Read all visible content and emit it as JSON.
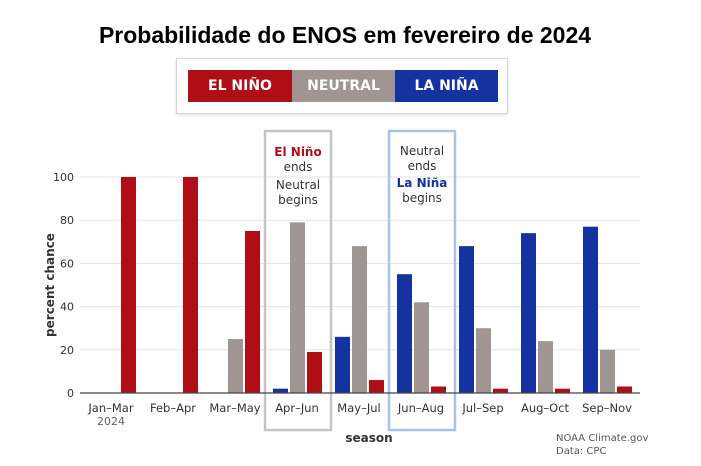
{
  "title": "Probabilidade do ENOS em fevereiro de 2024",
  "legend": [
    {
      "label": "EL NIÑO",
      "color": "#b00e16"
    },
    {
      "label": "NEUTRAL",
      "color": "#a19593"
    },
    {
      "label": "LA NIÑA",
      "color": "#1432a0"
    }
  ],
  "annotations": {
    "box1": {
      "line1": "El Niño",
      "line2": "ends",
      "line3": "Neutral",
      "line4": "begins"
    },
    "box2": {
      "line1": "Neutral",
      "line2": "ends",
      "line3": "La Niña",
      "line4": "begins"
    }
  },
  "source": {
    "line1": "NOAA Climate.gov",
    "line2": "Data: CPC"
  },
  "chart_data": {
    "type": "bar",
    "title": "Probabilidade do ENOS em fevereiro de 2024",
    "xlabel": "season",
    "ylabel": "percent chance",
    "ylim": [
      0,
      100
    ],
    "yticks": [
      0,
      20,
      40,
      60,
      80,
      100
    ],
    "grid": true,
    "categories": [
      "Jan–Mar",
      "Feb–Apr",
      "Mar–May",
      "Apr–Jun",
      "May–Jul",
      "Jun–Aug",
      "Jul–Sep",
      "Aug–Oct",
      "Sep–Nov"
    ],
    "category_sublabel": {
      "index": 0,
      "text": "2024"
    },
    "series": [
      {
        "name": "LA NIÑA",
        "color": "#1432a0",
        "values": [
          0,
          0,
          0,
          2,
          26,
          55,
          68,
          74,
          77
        ]
      },
      {
        "name": "NEUTRAL",
        "color": "#a19593",
        "values": [
          0,
          0,
          25,
          79,
          68,
          42,
          30,
          24,
          20
        ]
      },
      {
        "name": "EL NIÑO",
        "color": "#b00e16",
        "values": [
          100,
          100,
          75,
          19,
          6,
          3,
          2,
          2,
          3
        ]
      }
    ]
  }
}
